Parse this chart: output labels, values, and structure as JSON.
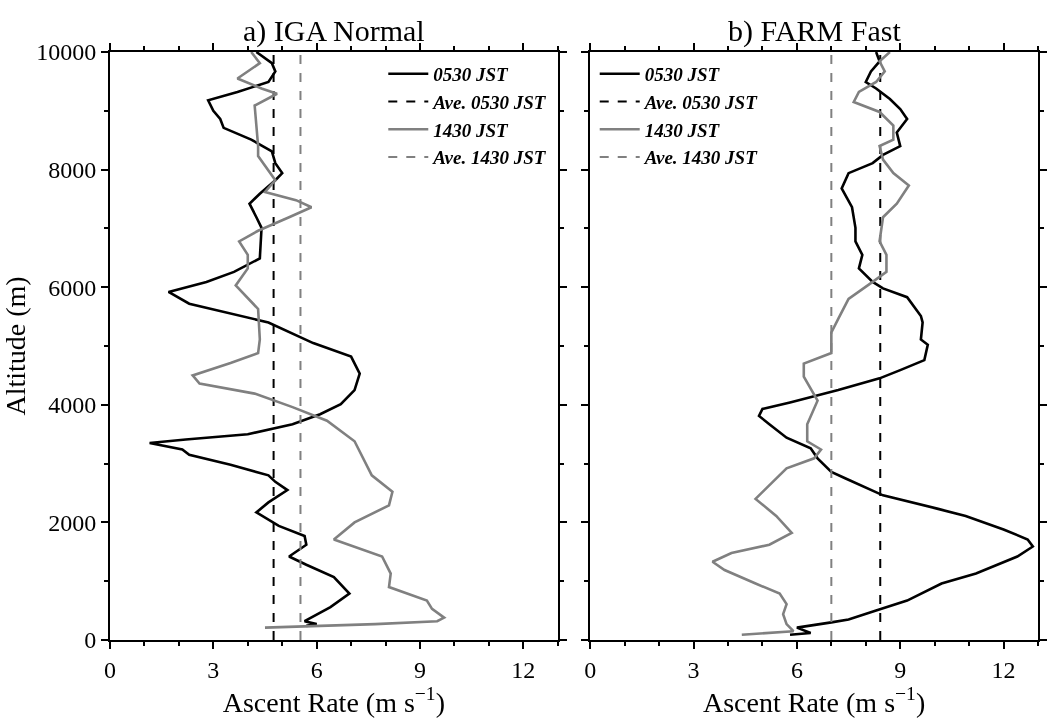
{
  "chart_data": [
    {
      "type": "line",
      "title": "a) IGA Normal",
      "xlabel": "Ascent Rate (m s$^{−1}$)",
      "ylabel": "Altitude (m)",
      "xlim": [
        0,
        13
      ],
      "ylim": [
        0,
        10000
      ],
      "xticks": [
        0,
        3,
        6,
        9,
        12
      ],
      "yticks": [
        0,
        2000,
        4000,
        6000,
        8000,
        10000
      ],
      "legend": "top right",
      "marker": "none",
      "series": [
        {
          "name": "0530 JST",
          "color": "#000000",
          "line_style": "solid",
          "x": [
            4.25,
            4.7,
            4.8,
            4.6,
            3.7,
            2.85,
            3.0,
            3.2,
            3.3,
            4.1,
            4.7,
            4.8,
            5.0,
            4.8,
            4.35,
            4.05,
            4.25,
            4.4,
            4.35,
            3.6,
            2.8,
            1.7,
            2.3,
            4.6,
            5.9,
            7.0,
            7.25,
            7.1,
            6.7,
            6.1,
            5.3,
            4.0,
            2.2,
            1.15,
            2.1,
            2.3,
            3.5,
            4.6,
            4.8,
            5.15,
            4.6,
            4.25,
            4.9,
            5.65,
            5.7,
            5.2,
            5.7,
            6.5,
            6.95,
            6.4,
            5.65,
            6.0,
            5.7
          ],
          "values": [
            10000,
            9810,
            9670,
            9490,
            9320,
            9180,
            9000,
            8860,
            8710,
            8510,
            8310,
            8110,
            7940,
            7820,
            7590,
            7420,
            7190,
            7010,
            6490,
            6260,
            6090,
            5920,
            5720,
            5400,
            5050,
            4820,
            4530,
            4250,
            4010,
            3840,
            3670,
            3500,
            3410,
            3350,
            3240,
            3150,
            2980,
            2800,
            2690,
            2550,
            2340,
            2170,
            1940,
            1770,
            1620,
            1420,
            1280,
            1070,
            790,
            560,
            320,
            270,
            240
          ]
        },
        {
          "name": "Ave. 0530 JST",
          "color": "#000000",
          "line_style": "dashed",
          "x": [
            4.75,
            4.75
          ],
          "values": [
            0,
            10000
          ]
        },
        {
          "name": "1430 JST",
          "color": "#808080",
          "line_style": "solid",
          "x": [
            4.1,
            4.35,
            3.7,
            4.4,
            4.85,
            4.2,
            4.3,
            4.3,
            4.8,
            4.5,
            5.4,
            5.85,
            5.2,
            4.3,
            3.75,
            4.0,
            4.0,
            3.65,
            4.3,
            4.35,
            4.3,
            3.5,
            2.4,
            2.6,
            4.2,
            5.3,
            6.3,
            7.1,
            7.6,
            8.2,
            8.1,
            7.1,
            6.5,
            7.9,
            8.15,
            8.1,
            9.2,
            9.35,
            9.7,
            9.5,
            7.7,
            4.5
          ],
          "values": [
            10000,
            9810,
            9550,
            9380,
            9290,
            9090,
            8400,
            8230,
            7820,
            7620,
            7480,
            7360,
            7190,
            6960,
            6780,
            6550,
            6320,
            6030,
            5630,
            5110,
            4880,
            4710,
            4500,
            4360,
            4190,
            3960,
            3730,
            3380,
            2800,
            2520,
            2290,
            2000,
            1710,
            1420,
            1130,
            900,
            670,
            530,
            380,
            320,
            270,
            210
          ]
        },
        {
          "name": "Ave. 1430 JST",
          "color": "#808080",
          "line_style": "dashed",
          "x": [
            5.53,
            5.53
          ],
          "values": [
            0,
            10000
          ]
        }
      ]
    },
    {
      "type": "line",
      "title": "b) FARM Fast",
      "xlabel": "Ascent Rate (m s$^{−1}$)",
      "xlim": [
        0,
        13
      ],
      "ylim": [
        0,
        10000
      ],
      "xticks": [
        0,
        3,
        6,
        9,
        12
      ],
      "yticks": [
        0,
        2000,
        4000,
        6000,
        8000,
        10000
      ],
      "tick_labels": "x",
      "legend": "top left",
      "marker": "none",
      "series": [
        {
          "name": "0530 JST",
          "color": "#000000",
          "line_style": "solid",
          "x": [
            8.3,
            8.4,
            8.15,
            8.0,
            8.3,
            8.7,
            9.0,
            9.2,
            8.9,
            9.0,
            8.5,
            8.2,
            7.5,
            7.3,
            7.6,
            7.7,
            7.7,
            7.9,
            7.8,
            8.2,
            8.5,
            9.2,
            9.6,
            9.65,
            9.6,
            9.8,
            9.7,
            9.0,
            8.4,
            7.2,
            5.8,
            5.0,
            4.9,
            5.2,
            5.7,
            6.4,
            6.6,
            7.0,
            7.4,
            8.5,
            10.1,
            10.9,
            12.0,
            12.7,
            12.85,
            12.4,
            11.2,
            10.2,
            9.2,
            8.3,
            7.5,
            7.0,
            6.0,
            6.4,
            5.8
          ],
          "values": [
            10000,
            9840,
            9670,
            9490,
            9380,
            9200,
            9030,
            8860,
            8630,
            8400,
            8250,
            8110,
            7940,
            7680,
            7360,
            7010,
            6780,
            6550,
            6320,
            6090,
            5980,
            5830,
            5510,
            5400,
            5110,
            5020,
            4760,
            4590,
            4450,
            4250,
            4040,
            3930,
            3810,
            3670,
            3440,
            3260,
            3090,
            2860,
            2750,
            2460,
            2230,
            2110,
            1880,
            1710,
            1590,
            1420,
            1130,
            960,
            670,
            500,
            350,
            300,
            210,
            120,
            90
          ]
        },
        {
          "name": "Ave. 0530 JST",
          "color": "#000000",
          "line_style": "dashed",
          "x": [
            8.42,
            8.42
          ],
          "values": [
            0,
            10000
          ]
        },
        {
          "name": "1430 JST",
          "color": "#808080",
          "line_style": "solid",
          "x": [
            8.7,
            8.4,
            8.55,
            8.3,
            7.8,
            7.65,
            8.4,
            8.8,
            8.8,
            8.4,
            8.5,
            8.8,
            9.25,
            8.9,
            8.5,
            8.4,
            8.6,
            8.6,
            8.2,
            7.5,
            7.2,
            7.0,
            7.0,
            6.2,
            6.2,
            6.6,
            6.3,
            6.3,
            6.7,
            6.5,
            5.7,
            5.3,
            4.8,
            5.4,
            5.85,
            5.2,
            4.1,
            3.55,
            3.9,
            4.8,
            5.5,
            5.7,
            5.6,
            5.7,
            5.9,
            4.4
          ],
          "values": [
            10000,
            9840,
            9670,
            9490,
            9320,
            9150,
            8980,
            8750,
            8510,
            8400,
            8170,
            7940,
            7730,
            7420,
            7190,
            6780,
            6550,
            6260,
            6090,
            5800,
            5460,
            5230,
            4880,
            4700,
            4480,
            4070,
            3670,
            3380,
            3240,
            3090,
            2920,
            2690,
            2400,
            2110,
            1820,
            1620,
            1480,
            1330,
            1190,
            960,
            790,
            610,
            440,
            270,
            150,
            90
          ]
        },
        {
          "name": "Ave. 1430 JST",
          "color": "#808080",
          "line_style": "dashed",
          "x": [
            7.0,
            7.0
          ],
          "values": [
            0,
            10000
          ]
        }
      ]
    }
  ]
}
